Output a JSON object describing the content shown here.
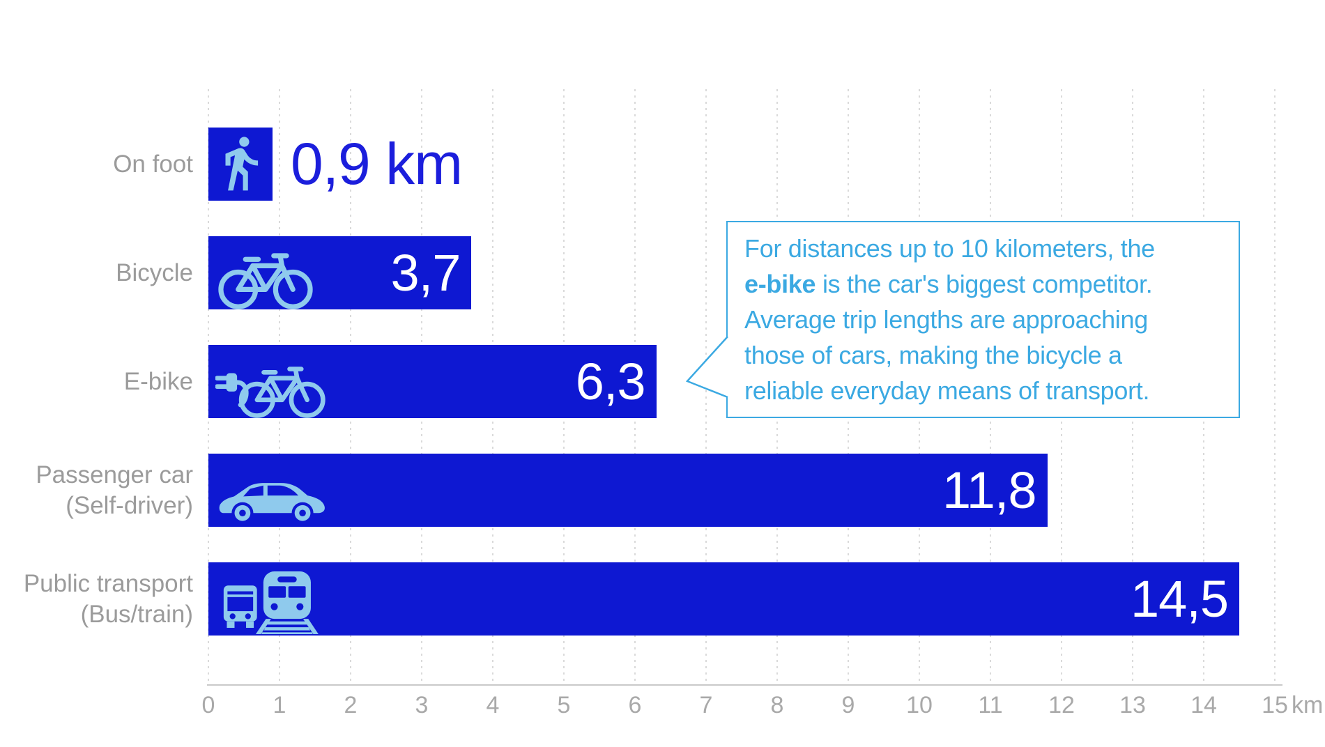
{
  "chart_data": {
    "type": "bar",
    "orientation": "horizontal",
    "categories": [
      "On foot",
      "Bicycle",
      "E-bike",
      "Passenger car (Self-driver)",
      "Public transport (Bus/train)"
    ],
    "values": [
      0.9,
      3.7,
      6.3,
      11.8,
      14.5
    ],
    "value_labels": [
      "0,9 km",
      "3,7",
      "6,3",
      "11,8",
      "14,5"
    ],
    "xlabel": "km",
    "xlim": [
      0,
      15
    ],
    "x_ticks": [
      0,
      1,
      2,
      3,
      4,
      5,
      6,
      7,
      8,
      9,
      10,
      11,
      12,
      13,
      14,
      15
    ],
    "grid": "vertical-dotted",
    "legend": "none",
    "decimal_separator": ","
  },
  "rows": [
    {
      "label_lines": [
        "On foot"
      ],
      "value": 0.9,
      "value_label": "0,9 km",
      "value_placement": "outside",
      "icon": "pedestrian-icon"
    },
    {
      "label_lines": [
        "Bicycle"
      ],
      "value": 3.7,
      "value_label": "3,7",
      "value_placement": "inside",
      "icon": "bicycle-icon"
    },
    {
      "label_lines": [
        "E-bike"
      ],
      "value": 6.3,
      "value_label": "6,3",
      "value_placement": "inside",
      "icon": "e-bike-icon"
    },
    {
      "label_lines": [
        "Passenger car",
        "(Self-driver)"
      ],
      "value": 11.8,
      "value_label": "11,8",
      "value_placement": "inside",
      "icon": "car-icon"
    },
    {
      "label_lines": [
        "Public transport",
        "(Bus/train)"
      ],
      "value": 14.5,
      "value_label": "14,5",
      "value_placement": "inside",
      "icon": "bus-train-icon"
    }
  ],
  "axis": {
    "tick_labels": [
      "0",
      "1",
      "2",
      "3",
      "4",
      "5",
      "6",
      "7",
      "8",
      "9",
      "10",
      "11",
      "12",
      "13",
      "14",
      "15"
    ],
    "unit_label": "km"
  },
  "callout": {
    "bold_word": "e-bike",
    "lines": [
      "For distances up to 10 kilometers, the",
      "e-bike is the car's biggest competitor.",
      "Average trip lengths are approaching",
      "those of cars, making the bicycle a",
      "reliable everyday means of transport."
    ]
  },
  "colors": {
    "bar_blue": "#0E18D2",
    "icon_blue": "#8FCAED",
    "value_text_white": "#FFFFFF",
    "on_foot_value_blue": "#1B1EDC",
    "label_gray": "#9B9B9B",
    "tick_gray": "#A9A9A9",
    "axis_line_gray": "#C9C9C9",
    "grid_dot_gray": "#DADADA",
    "callout_blue": "#3BA9E2",
    "background": "#FFFFFF"
  }
}
